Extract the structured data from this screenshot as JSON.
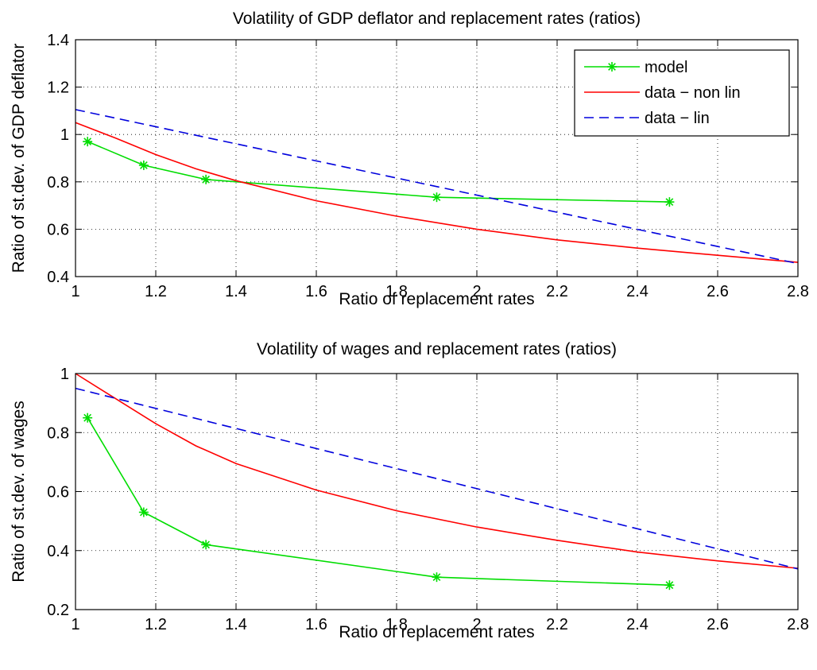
{
  "chart_data": [
    {
      "type": "line",
      "title": "Volatility of GDP deflator and replacement rates (ratios)",
      "xlabel": "Ratio of replacement rates",
      "ylabel": "Ratio of st.dev. of GDP deflator",
      "xlim": [
        1,
        2.8
      ],
      "ylim": [
        0.4,
        1.4
      ],
      "xticks": [
        1,
        1.2,
        1.4,
        1.6,
        1.8,
        2,
        2.2,
        2.4,
        2.6,
        2.8
      ],
      "yticks": [
        0.4,
        0.6,
        0.8,
        1,
        1.2,
        1.4
      ],
      "xtick_labels": [
        "1",
        "1.2",
        "1.4",
        "1.6",
        "1.8",
        "2",
        "2.2",
        "2.4",
        "2.6",
        "2.8"
      ],
      "ytick_labels": [
        "0.4",
        "0.6",
        "0.8",
        "1",
        "1.2",
        "1.4"
      ],
      "grid": true,
      "legend": "top-right",
      "series": [
        {
          "name": "model",
          "color": "#00dd00",
          "style": "solid",
          "marker": "asterisk",
          "x": [
            1.03,
            1.17,
            1.325,
            1.9,
            2.48
          ],
          "y": [
            0.97,
            0.87,
            0.81,
            0.735,
            0.715
          ]
        },
        {
          "name": "data − non lin",
          "color": "#ff0000",
          "style": "solid",
          "marker": "none",
          "x": [
            1.0,
            1.1,
            1.2,
            1.3,
            1.4,
            1.6,
            1.8,
            2.0,
            2.2,
            2.4,
            2.6,
            2.8
          ],
          "y": [
            1.05,
            0.985,
            0.915,
            0.855,
            0.805,
            0.72,
            0.655,
            0.6,
            0.555,
            0.52,
            0.49,
            0.46
          ]
        },
        {
          "name": "data − lin",
          "color": "#0000dd",
          "style": "dashed",
          "marker": "none",
          "x": [
            1.0,
            2.8
          ],
          "y": [
            1.105,
            0.455
          ]
        }
      ]
    },
    {
      "type": "line",
      "title": "Volatility of wages and replacement rates (ratios)",
      "xlabel": "Ratio of replacement rates",
      "ylabel": "Ratio of st.dev. of wages",
      "xlim": [
        1,
        2.8
      ],
      "ylim": [
        0.2,
        1.0
      ],
      "xticks": [
        1,
        1.2,
        1.4,
        1.6,
        1.8,
        2,
        2.2,
        2.4,
        2.6,
        2.8
      ],
      "yticks": [
        0.2,
        0.4,
        0.6,
        0.8,
        1
      ],
      "xtick_labels": [
        "1",
        "1.2",
        "1.4",
        "1.6",
        "1.8",
        "2",
        "2.2",
        "2.4",
        "2.6",
        "2.8"
      ],
      "ytick_labels": [
        "0.2",
        "0.4",
        "0.6",
        "0.8",
        "1"
      ],
      "grid": true,
      "legend": "none",
      "series": [
        {
          "name": "model",
          "color": "#00dd00",
          "style": "solid",
          "marker": "asterisk",
          "x": [
            1.03,
            1.17,
            1.325,
            1.9,
            2.48
          ],
          "y": [
            0.85,
            0.53,
            0.42,
            0.31,
            0.283
          ]
        },
        {
          "name": "data − non lin",
          "color": "#ff0000",
          "style": "solid",
          "marker": "none",
          "x": [
            1.0,
            1.1,
            1.2,
            1.3,
            1.4,
            1.6,
            1.8,
            2.0,
            2.2,
            2.4,
            2.6,
            2.8
          ],
          "y": [
            1.0,
            0.915,
            0.83,
            0.755,
            0.695,
            0.605,
            0.535,
            0.48,
            0.435,
            0.395,
            0.365,
            0.34
          ]
        },
        {
          "name": "data − lin",
          "color": "#0000dd",
          "style": "dashed",
          "marker": "none",
          "x": [
            1.0,
            2.8
          ],
          "y": [
            0.95,
            0.338
          ]
        }
      ]
    }
  ]
}
